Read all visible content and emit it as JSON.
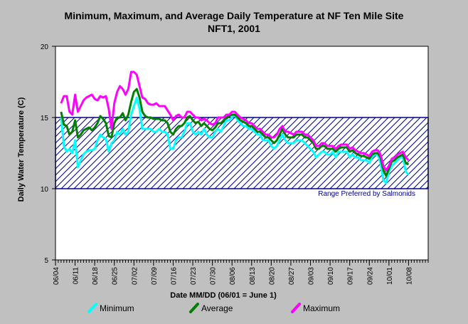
{
  "chart_data": {
    "type": "line",
    "title": "Minimum, Maximum, and Average Daily Temperature at NF Ten Mile Site",
    "subtitle": "NFT1, 2001",
    "xlabel": "Date MM/DD (06/01 = June 1)",
    "ylabel": "Daily Water Temperature (C)",
    "ylim": [
      5,
      20
    ],
    "yticks": [
      5,
      10,
      15,
      20
    ],
    "x_start": "06/04",
    "x_end": "10/15",
    "x_ticks": [
      "06/04",
      "06/11",
      "06/18",
      "06/25",
      "07/02",
      "07/09",
      "07/16",
      "07/23",
      "07/30",
      "08/06",
      "08/13",
      "08/20",
      "08/27",
      "09/03",
      "09/10",
      "09/17",
      "09/24",
      "10/01",
      "10/08"
    ],
    "band": {
      "low": 10,
      "high": 15,
      "label": "Range Preferred by Salmonids"
    },
    "x": [
      "06/06",
      "06/07",
      "06/08",
      "06/09",
      "06/10",
      "06/11",
      "06/12",
      "06/13",
      "06/14",
      "06/15",
      "06/16",
      "06/17",
      "06/18",
      "06/19",
      "06/20",
      "06/21",
      "06/22",
      "06/23",
      "06/24",
      "06/25",
      "06/26",
      "06/27",
      "06/28",
      "06/29",
      "06/30",
      "07/01",
      "07/02",
      "07/03",
      "07/04",
      "07/05",
      "07/06",
      "07/07",
      "07/08",
      "07/09",
      "07/10",
      "07/11",
      "07/12",
      "07/13",
      "07/14",
      "07/15",
      "07/16",
      "07/17",
      "07/18",
      "07/19",
      "07/20",
      "07/21",
      "07/22",
      "07/23",
      "07/24",
      "07/25",
      "07/26",
      "07/27",
      "07/28",
      "07/29",
      "07/30",
      "07/31",
      "08/01",
      "08/02",
      "08/03",
      "08/04",
      "08/05",
      "08/06",
      "08/07",
      "08/08",
      "08/09",
      "08/10",
      "08/11",
      "08/12",
      "08/13",
      "08/14",
      "08/15",
      "08/16",
      "08/17",
      "08/18",
      "08/19",
      "08/20",
      "08/21",
      "08/22",
      "08/23",
      "08/24",
      "08/25",
      "08/26",
      "08/27",
      "08/28",
      "08/29",
      "08/30",
      "08/31",
      "09/01",
      "09/02",
      "09/03",
      "09/04",
      "09/05",
      "09/06",
      "09/07",
      "09/08",
      "09/09",
      "09/10",
      "09/11",
      "09/12",
      "09/13",
      "09/14",
      "09/15",
      "09/16",
      "09/17",
      "09/18",
      "09/19",
      "09/20",
      "09/21",
      "09/22",
      "09/23",
      "09/24",
      "09/25",
      "09/26",
      "09/27",
      "09/28",
      "09/29",
      "09/30",
      "10/01",
      "10/02",
      "10/03",
      "10/04",
      "10/05",
      "10/06",
      "10/07",
      "10/08"
    ],
    "series": [
      {
        "name": "Minimum",
        "color": "#00ffff",
        "values": [
          15.0,
          13.0,
          12.6,
          12.8,
          12.5,
          13.4,
          11.5,
          12.0,
          12.4,
          12.6,
          12.7,
          12.7,
          12.8,
          13.4,
          13.8,
          13.6,
          13.5,
          12.6,
          13.2,
          13.4,
          14.0,
          13.8,
          14.2,
          13.8,
          14.0,
          15.2,
          15.8,
          16.4,
          15.6,
          14.2,
          14.2,
          14.2,
          14.2,
          14.0,
          14.0,
          14.2,
          14.0,
          14.0,
          13.8,
          12.8,
          12.8,
          13.4,
          13.6,
          13.6,
          14.0,
          14.6,
          14.6,
          14.0,
          13.8,
          14.0,
          13.8,
          14.2,
          13.8,
          13.6,
          13.6,
          14.0,
          14.2,
          14.0,
          14.4,
          14.8,
          14.8,
          15.0,
          15.2,
          14.8,
          14.6,
          14.4,
          14.4,
          14.2,
          14.2,
          14.0,
          13.8,
          13.8,
          13.4,
          13.4,
          13.4,
          13.0,
          12.8,
          13.0,
          13.4,
          13.8,
          13.4,
          13.2,
          13.2,
          13.2,
          13.4,
          13.4,
          13.4,
          13.2,
          13.0,
          12.8,
          12.6,
          12.2,
          12.4,
          12.6,
          12.6,
          12.4,
          12.4,
          12.6,
          12.2,
          12.6,
          12.6,
          12.6,
          12.6,
          12.2,
          12.4,
          12.2,
          12.2,
          12.0,
          12.0,
          12.0,
          11.8,
          12.2,
          12.4,
          12.4,
          11.8,
          10.6,
          10.4,
          11.2,
          11.6,
          11.8,
          12.0,
          12.2,
          12.2,
          11.2,
          11.0
        ]
      },
      {
        "name": "Average",
        "color": "#008000",
        "values": [
          15.4,
          14.5,
          14.4,
          13.8,
          14.0,
          14.8,
          13.6,
          13.8,
          14.1,
          14.2,
          14.3,
          14.1,
          14.3,
          14.6,
          15.1,
          14.9,
          14.6,
          13.7,
          13.6,
          14.6,
          15.0,
          15.0,
          15.3,
          14.8,
          15.2,
          16.1,
          16.8,
          17.0,
          16.4,
          15.4,
          15.1,
          15.0,
          15.0,
          14.9,
          14.9,
          14.9,
          14.8,
          14.8,
          14.6,
          14.0,
          13.8,
          14.2,
          14.4,
          14.4,
          14.6,
          15.0,
          15.1,
          14.8,
          14.6,
          14.7,
          14.4,
          14.6,
          14.4,
          14.2,
          14.1,
          14.3,
          14.6,
          14.6,
          14.8,
          15.0,
          15.1,
          15.2,
          15.2,
          15.0,
          14.8,
          14.7,
          14.6,
          14.4,
          14.4,
          14.2,
          14.0,
          14.0,
          13.8,
          13.6,
          13.6,
          13.4,
          13.2,
          13.4,
          13.8,
          14.2,
          13.8,
          13.6,
          13.6,
          13.6,
          13.8,
          13.8,
          13.8,
          13.6,
          13.6,
          13.4,
          13.2,
          12.8,
          12.8,
          13.0,
          13.0,
          12.8,
          12.8,
          12.8,
          12.6,
          12.8,
          12.9,
          12.9,
          12.9,
          12.6,
          12.7,
          12.5,
          12.4,
          12.3,
          12.3,
          12.2,
          12.1,
          12.4,
          12.5,
          12.5,
          12.2,
          11.3,
          10.9,
          11.4,
          11.9,
          12.0,
          12.2,
          12.3,
          12.4,
          11.8,
          11.7
        ]
      },
      {
        "name": "Maximum",
        "color": "#ff00ff",
        "values": [
          16.0,
          16.5,
          16.5,
          15.4,
          15.2,
          16.6,
          15.4,
          15.8,
          16.2,
          16.4,
          16.5,
          16.6,
          16.3,
          16.2,
          16.5,
          16.4,
          16.5,
          15.6,
          14.2,
          16.0,
          16.8,
          17.2,
          17.0,
          16.6,
          17.0,
          18.2,
          18.2,
          18.0,
          17.2,
          16.4,
          16.3,
          16.0,
          15.9,
          15.9,
          16.0,
          15.8,
          15.8,
          15.8,
          15.5,
          15.2,
          14.8,
          15.1,
          15.2,
          15.0,
          15.0,
          15.4,
          15.4,
          15.2,
          15.0,
          15.0,
          14.8,
          14.9,
          14.8,
          14.6,
          14.5,
          14.6,
          15.0,
          15.0,
          15.0,
          15.2,
          15.2,
          15.4,
          15.4,
          15.2,
          15.0,
          14.9,
          14.8,
          14.6,
          14.6,
          14.4,
          14.2,
          14.2,
          14.0,
          13.8,
          13.8,
          13.6,
          13.6,
          13.8,
          14.2,
          14.4,
          14.0,
          14.0,
          13.9,
          13.8,
          14.0,
          14.0,
          14.0,
          13.8,
          13.8,
          13.6,
          13.4,
          13.0,
          13.0,
          13.2,
          13.2,
          13.0,
          13.0,
          13.0,
          12.8,
          13.0,
          13.1,
          13.1,
          13.1,
          12.8,
          12.9,
          12.7,
          12.6,
          12.5,
          12.5,
          12.4,
          12.3,
          12.6,
          12.7,
          12.7,
          12.4,
          11.6,
          11.3,
          11.6,
          12.1,
          12.2,
          12.4,
          12.5,
          12.6,
          12.2,
          12.0
        ]
      }
    ]
  }
}
